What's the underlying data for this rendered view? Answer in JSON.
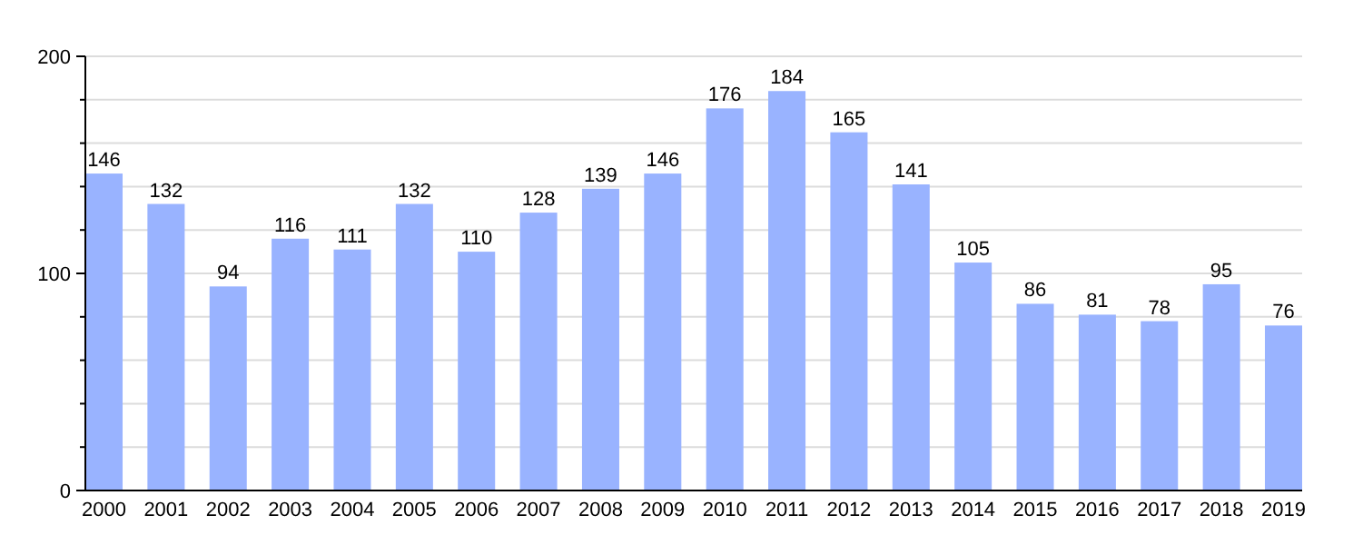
{
  "chart_data": {
    "type": "bar",
    "categories": [
      "2000",
      "2001",
      "2002",
      "2003",
      "2004",
      "2005",
      "2006",
      "2007",
      "2008",
      "2009",
      "2010",
      "2011",
      "2012",
      "2013",
      "2014",
      "2015",
      "2016",
      "2017",
      "2018",
      "2019"
    ],
    "values": [
      146,
      132,
      94,
      116,
      111,
      132,
      110,
      128,
      139,
      146,
      176,
      184,
      165,
      141,
      105,
      86,
      81,
      78,
      95,
      76
    ],
    "color": "#99b3ff",
    "ylim": [
      0,
      200
    ],
    "yticks": [
      0,
      {
        "value": 20,
        "label": null
      },
      {
        "value": 40,
        "label": null
      },
      {
        "value": 60,
        "label": null
      },
      {
        "value": 80,
        "label": null
      },
      100,
      {
        "value": 120,
        "label": null
      },
      {
        "value": 140,
        "label": null
      },
      {
        "value": 160,
        "label": null
      },
      {
        "value": 180,
        "label": null
      },
      200
    ],
    "grid": true,
    "data_labels": true
  }
}
